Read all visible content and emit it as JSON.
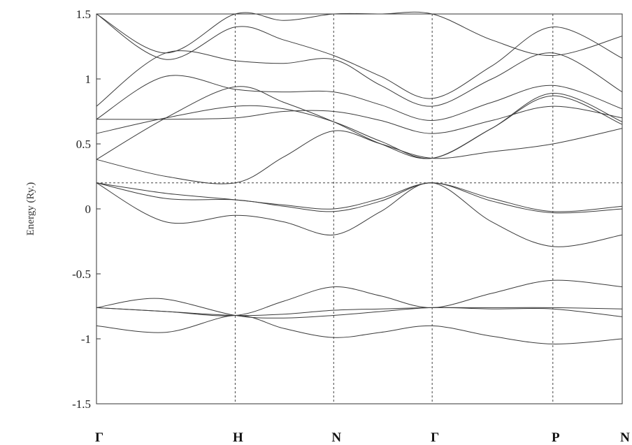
{
  "chart_data": {
    "type": "line",
    "ylabel": "Energy (Ry.)",
    "ylim": [
      -1.5,
      1.5
    ],
    "yticks": [
      {
        "value": 1.5,
        "label": "1.5"
      },
      {
        "value": 1,
        "label": "1"
      },
      {
        "value": 0.5,
        "label": "0.5"
      },
      {
        "value": 0,
        "label": "0"
      },
      {
        "value": -0.5,
        "label": "-0.5"
      },
      {
        "value": -1,
        "label": "-1"
      },
      {
        "value": -1.5,
        "label": "-1.5"
      }
    ],
    "k_points": [
      {
        "label": "Γ",
        "x": 0
      },
      {
        "label": "H",
        "x": 1
      },
      {
        "label": "N",
        "x": 1.71
      },
      {
        "label": "Γ",
        "x": 2.42
      },
      {
        "label": "P",
        "x": 3.29
      },
      {
        "label": "N",
        "x": 3.79
      }
    ],
    "fermi_level": 0.2,
    "grid": false,
    "line_color": "#3a3a3a",
    "series": [
      {
        "points": [
          [
            0,
            -0.9
          ],
          [
            0.5,
            -0.95
          ],
          [
            1,
            -0.82
          ],
          [
            1.35,
            -0.92
          ],
          [
            1.71,
            -0.99
          ],
          [
            2.05,
            -0.95
          ],
          [
            2.42,
            -0.9
          ],
          [
            2.85,
            -0.98
          ],
          [
            3.29,
            -1.04
          ],
          [
            3.79,
            -1.0
          ]
        ]
      },
      {
        "points": [
          [
            0,
            -0.76
          ],
          [
            0.5,
            -0.79
          ],
          [
            1,
            -0.82
          ],
          [
            1.35,
            -0.81
          ],
          [
            1.71,
            -0.78
          ],
          [
            2.05,
            -0.77
          ],
          [
            2.42,
            -0.76
          ],
          [
            2.85,
            -0.76
          ],
          [
            3.29,
            -0.76
          ],
          [
            3.79,
            -0.77
          ]
        ]
      },
      {
        "points": [
          [
            0,
            -0.76
          ],
          [
            0.45,
            -0.69
          ],
          [
            1,
            -0.82
          ],
          [
            1.35,
            -0.84
          ],
          [
            1.71,
            -0.82
          ],
          [
            2.05,
            -0.79
          ],
          [
            2.42,
            -0.76
          ],
          [
            2.85,
            -0.77
          ],
          [
            3.29,
            -0.77
          ],
          [
            3.79,
            -0.83
          ]
        ]
      },
      {
        "points": [
          [
            0,
            -0.76
          ],
          [
            0.5,
            -0.79
          ],
          [
            1,
            -0.82
          ],
          [
            1.35,
            -0.71
          ],
          [
            1.71,
            -0.6
          ],
          [
            2.05,
            -0.67
          ],
          [
            2.42,
            -0.76
          ],
          [
            2.85,
            -0.65
          ],
          [
            3.29,
            -0.55
          ],
          [
            3.79,
            -0.6
          ]
        ]
      },
      {
        "points": [
          [
            0,
            0.2
          ],
          [
            0.5,
            -0.1
          ],
          [
            1,
            -0.05
          ],
          [
            1.35,
            -0.1
          ],
          [
            1.71,
            -0.2
          ],
          [
            2.05,
            -0.02
          ],
          [
            2.42,
            0.2
          ],
          [
            2.85,
            -0.1
          ],
          [
            3.29,
            -0.29
          ],
          [
            3.79,
            -0.2
          ]
        ]
      },
      {
        "points": [
          [
            0,
            0.2
          ],
          [
            0.5,
            0.08
          ],
          [
            1,
            0.07
          ],
          [
            1.35,
            0.02
          ],
          [
            1.71,
            -0.02
          ],
          [
            2.05,
            0.06
          ],
          [
            2.42,
            0.2
          ],
          [
            2.85,
            0.06
          ],
          [
            3.29,
            -0.03
          ],
          [
            3.79,
            0.0
          ]
        ]
      },
      {
        "points": [
          [
            0,
            0.2
          ],
          [
            0.5,
            0.12
          ],
          [
            1,
            0.07
          ],
          [
            1.35,
            0.03
          ],
          [
            1.71,
            0.0
          ],
          [
            2.05,
            0.08
          ],
          [
            2.42,
            0.2
          ],
          [
            2.85,
            0.08
          ],
          [
            3.29,
            -0.02
          ],
          [
            3.79,
            0.02
          ]
        ]
      },
      {
        "points": [
          [
            0,
            0.38
          ],
          [
            0.5,
            0.25
          ],
          [
            1,
            0.2
          ],
          [
            1.35,
            0.4
          ],
          [
            1.71,
            0.6
          ],
          [
            2.05,
            0.5
          ],
          [
            2.42,
            0.39
          ],
          [
            2.85,
            0.44
          ],
          [
            3.29,
            0.5
          ],
          [
            3.79,
            0.62
          ]
        ]
      },
      {
        "points": [
          [
            0,
            0.38
          ],
          [
            0.5,
            0.7
          ],
          [
            1,
            0.94
          ],
          [
            1.35,
            0.82
          ],
          [
            1.71,
            0.67
          ],
          [
            2.05,
            0.5
          ],
          [
            2.42,
            0.39
          ],
          [
            2.85,
            0.62
          ],
          [
            3.29,
            0.87
          ],
          [
            3.79,
            0.65
          ]
        ]
      },
      {
        "points": [
          [
            0,
            0.58
          ],
          [
            0.5,
            0.7
          ],
          [
            1,
            0.79
          ],
          [
            1.35,
            0.77
          ],
          [
            1.71,
            0.67
          ],
          [
            2.05,
            0.52
          ],
          [
            2.42,
            0.39
          ],
          [
            2.85,
            0.62
          ],
          [
            3.29,
            0.89
          ],
          [
            3.79,
            0.67
          ]
        ]
      },
      {
        "points": [
          [
            0,
            0.69
          ],
          [
            0.5,
            0.69
          ],
          [
            1,
            0.7
          ],
          [
            1.35,
            0.75
          ],
          [
            1.71,
            0.75
          ],
          [
            2.05,
            0.68
          ],
          [
            2.42,
            0.58
          ],
          [
            2.85,
            0.68
          ],
          [
            3.29,
            0.79
          ],
          [
            3.79,
            0.7
          ]
        ]
      },
      {
        "points": [
          [
            0,
            0.69
          ],
          [
            0.5,
            1.02
          ],
          [
            1,
            0.92
          ],
          [
            1.35,
            0.9
          ],
          [
            1.71,
            0.9
          ],
          [
            2.05,
            0.8
          ],
          [
            2.42,
            0.68
          ],
          [
            2.85,
            0.82
          ],
          [
            3.29,
            0.95
          ],
          [
            3.79,
            0.77
          ]
        ]
      },
      {
        "points": [
          [
            0,
            0.79
          ],
          [
            0.5,
            1.2
          ],
          [
            1,
            1.14
          ],
          [
            1.35,
            1.12
          ],
          [
            1.71,
            1.15
          ],
          [
            2.05,
            0.95
          ],
          [
            2.42,
            0.79
          ],
          [
            2.85,
            1.0
          ],
          [
            3.29,
            1.2
          ],
          [
            3.79,
            0.9
          ]
        ]
      },
      {
        "points": [
          [
            0,
            1.5
          ],
          [
            0.5,
            1.15
          ],
          [
            1,
            1.4
          ],
          [
            1.35,
            1.3
          ],
          [
            1.71,
            1.18
          ],
          [
            2.05,
            1.02
          ],
          [
            2.42,
            0.85
          ],
          [
            2.85,
            1.1
          ],
          [
            3.29,
            1.4
          ],
          [
            3.79,
            1.16
          ]
        ]
      },
      {
        "points": [
          [
            0,
            1.5
          ],
          [
            0.5,
            1.2
          ],
          [
            1,
            1.5
          ],
          [
            1.35,
            1.45
          ],
          [
            1.71,
            1.5
          ],
          [
            2.05,
            1.5
          ],
          [
            2.42,
            1.5
          ],
          [
            2.85,
            1.3
          ],
          [
            3.29,
            1.18
          ],
          [
            3.79,
            1.33
          ]
        ]
      }
    ]
  }
}
